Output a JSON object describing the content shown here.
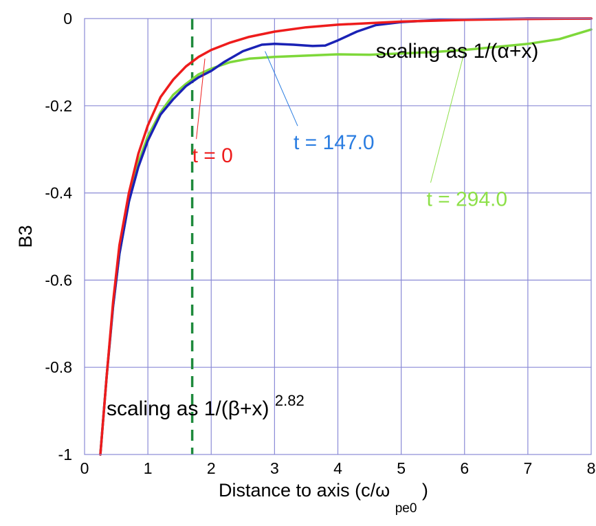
{
  "chart_data": {
    "type": "line",
    "xlabel": "Distance to axis (c/ω",
    "xlabel_sub": "pe0",
    "xlabel_close": ")",
    "ylabel": "B3",
    "xlim": [
      0,
      8
    ],
    "ylim": [
      -1,
      0
    ],
    "grid": true,
    "x_ticks": [
      "0",
      "1",
      "2",
      "3",
      "4",
      "5",
      "6",
      "7",
      "8"
    ],
    "y_ticks": [
      "0",
      "-0.2",
      "-0.4",
      "-0.6",
      "-0.8",
      "-1"
    ],
    "reference_line": {
      "x": 1.7,
      "style": "dashed",
      "color": "#1e8a3c"
    },
    "series": [
      {
        "name": "t = 0",
        "color": "#ee1c1c",
        "x": [
          0.25,
          0.35,
          0.45,
          0.55,
          0.7,
          0.85,
          1.0,
          1.2,
          1.4,
          1.6,
          1.8,
          2.0,
          2.3,
          2.6,
          3.0,
          3.5,
          4.0,
          5.0,
          6.0,
          7.0,
          8.0
        ],
        "y": [
          -1.0,
          -0.82,
          -0.65,
          -0.52,
          -0.4,
          -0.31,
          -0.245,
          -0.18,
          -0.14,
          -0.11,
          -0.088,
          -0.072,
          -0.055,
          -0.042,
          -0.03,
          -0.02,
          -0.014,
          -0.007,
          -0.003,
          -0.001,
          0.0
        ]
      },
      {
        "name": "t = 147.0",
        "color": "#1a22b5",
        "x": [
          0.25,
          0.35,
          0.45,
          0.55,
          0.7,
          0.85,
          1.0,
          1.2,
          1.4,
          1.6,
          1.8,
          2.0,
          2.2,
          2.5,
          2.8,
          3.0,
          3.3,
          3.6,
          3.8,
          4.0,
          4.3,
          4.6,
          5.0,
          5.5,
          6.0,
          7.0,
          8.0
        ],
        "y": [
          -1.0,
          -0.82,
          -0.66,
          -0.54,
          -0.42,
          -0.34,
          -0.28,
          -0.22,
          -0.185,
          -0.155,
          -0.135,
          -0.12,
          -0.1,
          -0.075,
          -0.06,
          -0.058,
          -0.06,
          -0.063,
          -0.062,
          -0.05,
          -0.03,
          -0.015,
          -0.008,
          -0.004,
          -0.002,
          0.0,
          0.0
        ]
      },
      {
        "name": "t = 294.0",
        "color": "#7ed83a",
        "x": [
          0.25,
          0.35,
          0.45,
          0.55,
          0.7,
          0.85,
          1.0,
          1.2,
          1.4,
          1.6,
          1.8,
          2.0,
          2.3,
          2.6,
          3.0,
          3.5,
          4.0,
          4.5,
          5.0,
          5.5,
          6.0,
          6.5,
          7.0,
          7.5,
          8.0
        ],
        "y": [
          -1.0,
          -0.82,
          -0.66,
          -0.54,
          -0.42,
          -0.33,
          -0.27,
          -0.215,
          -0.175,
          -0.15,
          -0.128,
          -0.115,
          -0.1,
          -0.092,
          -0.088,
          -0.085,
          -0.082,
          -0.083,
          -0.08,
          -0.077,
          -0.072,
          -0.065,
          -0.058,
          -0.047,
          -0.025
        ]
      }
    ],
    "annotations": [
      {
        "text": "t = 0",
        "color": "#ee1c1c",
        "label_x": 1.7,
        "label_y": -0.33,
        "point_x": 1.9,
        "point_y": -0.092
      },
      {
        "text": "t = 147.0",
        "color": "#2a7de1",
        "label_x": 3.3,
        "label_y": -0.3,
        "point_x": 2.85,
        "point_y": -0.075
      },
      {
        "text": "t = 294.0",
        "color": "#8ee04a",
        "label_x": 5.4,
        "label_y": -0.43,
        "point_x": 6.0,
        "point_y": -0.075
      },
      {
        "text": "scaling as 1/(α+x)",
        "color": "#000000",
        "label_x": 4.6,
        "label_y": -0.09
      }
    ],
    "bottom_annotation": {
      "text": "scaling as 1/(β+x)",
      "superscript": "2.82",
      "label_x": 0.35,
      "label_y": -0.92
    }
  }
}
